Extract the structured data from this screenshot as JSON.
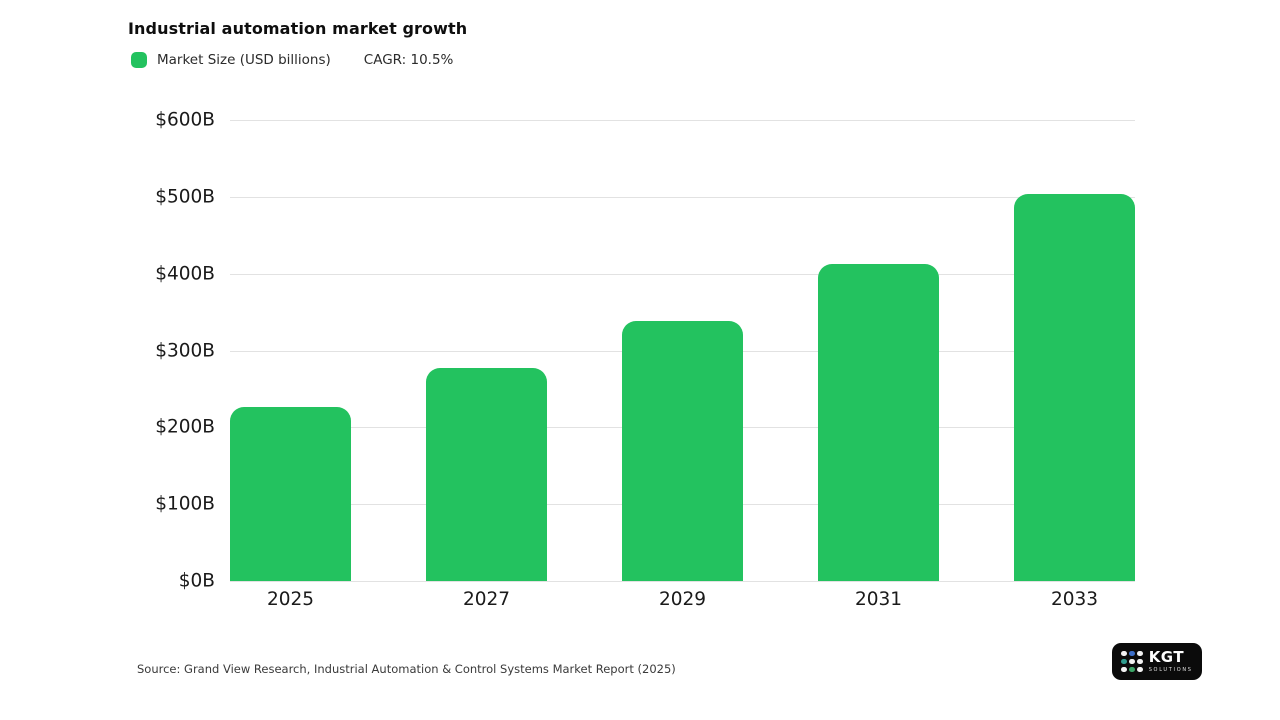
{
  "header": {
    "title": "Industrial automation market growth",
    "legend": {
      "market_size_label": "Market Size (USD billions)",
      "cagr_label": "CAGR: 10.5%"
    }
  },
  "chart_data": {
    "type": "bar",
    "title": "Industrial automation market growth",
    "series_name": "Market Size (USD billions)",
    "categories": [
      "2025",
      "2027",
      "2029",
      "2031",
      "2033"
    ],
    "values": [
      227,
      277,
      338,
      412,
      504
    ],
    "xlabel": "",
    "ylabel": "",
    "ylim": [
      0,
      600
    ],
    "yticks": [
      {
        "label": "$0B",
        "value": 0
      },
      {
        "label": "$100B",
        "value": 100
      },
      {
        "label": "$200B",
        "value": 200
      },
      {
        "label": "$300B",
        "value": 300
      },
      {
        "label": "$400B",
        "value": 400
      },
      {
        "label": "$500B",
        "value": 500
      },
      {
        "label": "$600B",
        "value": 600
      }
    ],
    "grid": true,
    "legend_position": "top-left",
    "annotations": [
      "CAGR: 10.5%"
    ]
  },
  "footer": {
    "source": "Source: Grand View Research, Industrial Automation & Control Systems Market Report (2025)"
  },
  "logo": {
    "name": "KGT",
    "subtitle": "SOLUTIONS",
    "dots": [
      [
        "white",
        "blue",
        "white"
      ],
      [
        "teal",
        "white",
        "white"
      ],
      [
        "white",
        "green",
        "white"
      ]
    ]
  },
  "colors": {
    "bar": "#23c25f",
    "grid": "#e2e2e2",
    "logo_bg": "#0b0b0b",
    "dot_white": "#f2f2f2",
    "dot_blue": "#3d6fc9",
    "dot_teal": "#2f9c8e",
    "dot_green": "#3ba566"
  }
}
